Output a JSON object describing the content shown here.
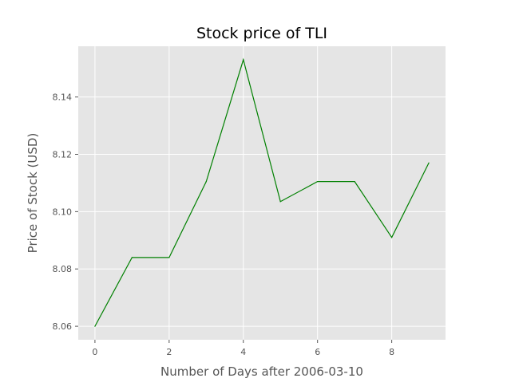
{
  "chart_data": {
    "type": "line",
    "title": "Stock price of TLI",
    "xlabel": "Number of Days after 2006-03-10",
    "ylabel": "Price of Stock (USD)",
    "x": [
      0,
      1,
      2,
      3,
      4,
      5,
      6,
      7,
      8,
      9
    ],
    "series": [
      {
        "values": [
          8.06,
          8.084,
          8.084,
          8.1105,
          8.153,
          8.1035,
          8.1105,
          8.1105,
          8.091,
          8.117
        ],
        "color": "#008000"
      }
    ],
    "xlim": [
      -0.45,
      9.45
    ],
    "ylim": [
      8.0553,
      8.1577
    ],
    "xticks": [
      0,
      2,
      4,
      6,
      8
    ],
    "xtick_labels": [
      "0",
      "2",
      "4",
      "6",
      "8"
    ],
    "yticks": [
      8.06,
      8.08,
      8.1,
      8.12,
      8.14
    ],
    "ytick_labels": [
      "8.06",
      "8.08",
      "8.10",
      "8.12",
      "8.14"
    ],
    "grid": true,
    "legend": "none",
    "colors": {
      "plot_background": "#e5e5e5",
      "grid": "#ffffff",
      "text": "#555555",
      "title": "#000000",
      "line": "#008000"
    }
  }
}
